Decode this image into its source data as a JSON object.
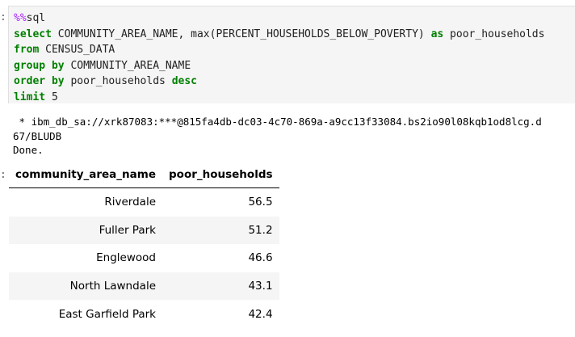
{
  "cell": {
    "code_lines": [
      [
        {
          "t": "%%",
          "c": "magic"
        },
        {
          "t": "sql",
          "c": "plain"
        }
      ],
      [
        {
          "t": "select",
          "c": "kw"
        },
        {
          "t": " COMMUNITY_AREA_NAME, max(PERCENT_HOUSEHOLDS_BELOW_POVERTY) ",
          "c": "plain"
        },
        {
          "t": "as",
          "c": "kw"
        },
        {
          "t": " poor_households",
          "c": "plain"
        }
      ],
      [
        {
          "t": "from",
          "c": "kw"
        },
        {
          "t": " CENSUS_DATA",
          "c": "plain"
        }
      ],
      [
        {
          "t": "group by",
          "c": "kw"
        },
        {
          "t": " COMMUNITY_AREA_NAME",
          "c": "plain"
        }
      ],
      [
        {
          "t": "order by",
          "c": "kw"
        },
        {
          "t": " poor_households ",
          "c": "plain"
        },
        {
          "t": "desc",
          "c": "kw"
        }
      ],
      [
        {
          "t": "limit",
          "c": "kw"
        },
        {
          "t": " 5",
          "c": "plain"
        }
      ]
    ]
  },
  "output": {
    "stdout_lines": [
      " * ibm_db_sa://xrk87083:***@815fa4db-dc03-4c70-869a-a9cc13f33084.bs2io90l08kqb1od8lcg.d",
      "67/BLUDB",
      "Done."
    ]
  },
  "result_table": {
    "columns": [
      "community_area_name",
      "poor_households"
    ],
    "rows": [
      [
        "Riverdale",
        "56.5"
      ],
      [
        "Fuller Park",
        "51.2"
      ],
      [
        "Englewood",
        "46.6"
      ],
      [
        "North Lawndale",
        "43.1"
      ],
      [
        "East Garfield Park",
        "42.4"
      ]
    ]
  },
  "prompt_marks": [
    ":",
    ":"
  ]
}
